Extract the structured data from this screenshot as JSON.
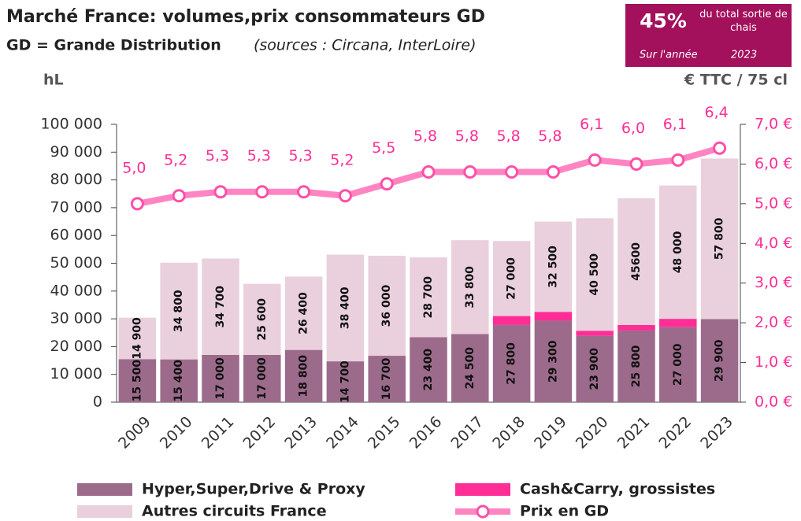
{
  "chart_data": {
    "type": "bar",
    "stacked": true,
    "title": "Marché France: volumes,prix consommateurs GD",
    "subtitle": "GD = Grande Distribution",
    "source": "(sources : Circana, InterLoire)",
    "y_label": "hL",
    "y2_label": "€ TTC / 75 cl",
    "callout": {
      "value": "45%",
      "text": "du total sortie de chais",
      "period": "Sur l'année",
      "year": "2023"
    },
    "categories": [
      "2009",
      "2010",
      "2011",
      "2012",
      "2013",
      "2014",
      "2015",
      "2016",
      "2017",
      "2018",
      "2019",
      "2020",
      "2021",
      "2022",
      "2023"
    ],
    "series": [
      {
        "name": "Hyper,Super,Drive & Proxy",
        "color": "#9c6b8b",
        "values": [
          15500,
          15400,
          17000,
          17000,
          18800,
          14700,
          16700,
          23400,
          24500,
          27800,
          29300,
          23900,
          25800,
          27000,
          29900
        ],
        "value_labels": [
          "15 500",
          "15 400",
          "17 000",
          "17 000",
          "18 800",
          "14 700",
          "16 700",
          "23 400",
          "24 500",
          "27 800",
          "29 300",
          "23 900",
          "25 800",
          "27 000",
          "29 900"
        ]
      },
      {
        "name": "Cash&Carry, grossistes",
        "color": "#ff2d96",
        "values": [
          0,
          0,
          0,
          0,
          0,
          0,
          0,
          0,
          0,
          3200,
          3200,
          1800,
          2000,
          3000,
          0
        ]
      },
      {
        "name": "Autres circuits France",
        "color": "#e9d0dc",
        "values": [
          14900,
          34800,
          34700,
          25600,
          26400,
          38400,
          36000,
          28700,
          33800,
          27000,
          32500,
          40500,
          45600,
          48000,
          57800
        ],
        "value_labels": [
          "14 900",
          "34 800",
          "34 700",
          "25 600",
          "26 400",
          "38 400",
          "36 000",
          "28 700",
          "33 800",
          "27 000",
          "32 500",
          "40 500",
          "45600",
          "48 000",
          "57 800"
        ]
      },
      {
        "name": "Prix en GD",
        "color": "#ff85c2",
        "type": "line",
        "axis": "y2",
        "values": [
          5.0,
          5.2,
          5.3,
          5.3,
          5.3,
          5.2,
          5.5,
          5.8,
          5.8,
          5.8,
          5.8,
          6.1,
          6.0,
          6.1,
          6.4
        ],
        "value_labels": [
          "5,0",
          "5,2",
          "5,3",
          "5,3",
          "5,3",
          "5,2",
          "5,5",
          "5,8",
          "5,8",
          "5,8",
          "5,8",
          "6,1",
          "6,0",
          "6,1",
          "6,4"
        ]
      }
    ],
    "ylim": [
      0,
      100000
    ],
    "yticks": [
      0,
      {
        "value": 10000,
        "label": "10 000"
      },
      {
        "value": 20000,
        "label": "20 000"
      },
      {
        "value": 30000,
        "label": "30 000"
      },
      {
        "value": 40000,
        "label": "40 000"
      },
      {
        "value": 50000,
        "label": "50 000"
      },
      {
        "value": 60000,
        "label": "60 000"
      },
      {
        "value": 70000,
        "label": "70 000"
      },
      {
        "value": 80000,
        "label": "80 000"
      },
      {
        "value": 90000,
        "label": "90 000"
      },
      {
        "value": 100000,
        "label": "100 000"
      }
    ],
    "y2lim": [
      0,
      7
    ],
    "y2ticks": [
      {
        "value": 0,
        "label": "0,0 €"
      },
      {
        "value": 1,
        "label": "1,0 €"
      },
      {
        "value": 2,
        "label": "2,0 €"
      },
      {
        "value": 3,
        "label": "3,0 €"
      },
      {
        "value": 4,
        "label": "4,0 €"
      },
      {
        "value": 5,
        "label": "5,0 €"
      },
      {
        "value": 6,
        "label": "6,0 €"
      },
      {
        "value": 7,
        "label": "7,0 €"
      }
    ],
    "grid": false
  }
}
